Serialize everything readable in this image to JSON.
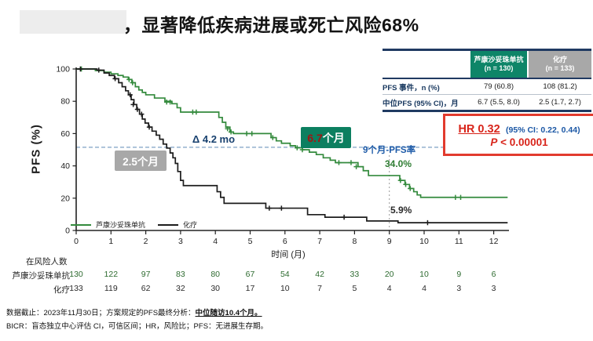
{
  "title": {
    "text": "，显著降低疾病进展或死亡风险68%"
  },
  "summary_table": {
    "columns": [
      {
        "label": "芦康沙妥珠单抗",
        "sub": "(n = 130)",
        "color": "#0e8568"
      },
      {
        "label": "化疗",
        "sub": "(n = 133)",
        "color": "#a8a8a8"
      }
    ],
    "rows": [
      {
        "label": "PFS 事件，n (%)",
        "values": [
          "79 (60.8)",
          "108 (81.2)"
        ]
      },
      {
        "label": "中位PFS (95% CI)，月",
        "values": [
          "6.7 (5.5, 8.0)",
          "2.5 (1.7, 2.7)"
        ]
      }
    ]
  },
  "hr_box": {
    "hr": "HR 0.32",
    "ci": "(95% CI: 0.22, 0.44)",
    "p_symbol": "P",
    "p_rest": " < 0.00001"
  },
  "annotations": {
    "delta": "Δ 4.2 mo",
    "green_median_value": "6.7",
    "green_median_unit": "个月",
    "gray_median": "2.5个月",
    "rate_label": "9个月-PFS率",
    "green_rate": "34.0%",
    "black_rate": "5.9%"
  },
  "footer": {
    "line1_prefix": "数据截止：2023年11月30日；方案规定的PFS最终分析：",
    "line1_underline": "中位随访10.4个月。",
    "line2": "BICR：盲态独立中心评估 CI，可信区间；HR，风险比；PFS：无进展生存期。"
  },
  "chart_data": {
    "type": "line",
    "subtype": "kaplan-meier",
    "title": "显著降低疾病进展或死亡风险68%",
    "xlabel": "时间 (月)",
    "ylabel": "PFS (%)",
    "xlim": [
      0,
      12.4
    ],
    "ylim": [
      0,
      100
    ],
    "x_ticks": [
      0,
      1,
      2,
      3,
      4,
      5,
      6,
      7,
      8,
      9,
      10,
      11,
      12
    ],
    "y_ticks": [
      0,
      20,
      40,
      60,
      80,
      100
    ],
    "grid": false,
    "legend_position": "inside bottom-left",
    "reference_lines": {
      "horizontal_pct": 51.5,
      "vertical_month": 9
    },
    "hr": "0.32",
    "hr_ci": "0.22, 0.44",
    "p": "< 0.00001",
    "delta_months": "4.2",
    "series": [
      {
        "name": "芦康沙妥珠单抗",
        "color": "#338a3c",
        "n": 130,
        "events": "79 (60.8)",
        "median_pfs": "6.7 (5.5, 8.0)",
        "rate_9mo_pct": 34.0,
        "points": [
          [
            0,
            100
          ],
          [
            0.55,
            99
          ],
          [
            0.8,
            98
          ],
          [
            1.0,
            97
          ],
          [
            1.2,
            96
          ],
          [
            1.35,
            95
          ],
          [
            1.5,
            93.5
          ],
          [
            1.6,
            91.5
          ],
          [
            1.7,
            89
          ],
          [
            1.8,
            87
          ],
          [
            1.9,
            85.5
          ],
          [
            2.0,
            84
          ],
          [
            2.25,
            82
          ],
          [
            2.55,
            80
          ],
          [
            2.75,
            78.5
          ],
          [
            2.9,
            76
          ],
          [
            3.0,
            73.3
          ],
          [
            3.95,
            73.3
          ],
          [
            4.1,
            70
          ],
          [
            4.2,
            67
          ],
          [
            4.3,
            64
          ],
          [
            4.42,
            61
          ],
          [
            4.52,
            60
          ],
          [
            5.45,
            60
          ],
          [
            5.6,
            57.5
          ],
          [
            5.75,
            55.5
          ],
          [
            5.9,
            54
          ],
          [
            6.15,
            52.5
          ],
          [
            6.3,
            51.2
          ],
          [
            6.5,
            50
          ],
          [
            6.7,
            48.5
          ],
          [
            6.9,
            47
          ],
          [
            7.1,
            45
          ],
          [
            7.3,
            43.5
          ],
          [
            7.45,
            42
          ],
          [
            7.95,
            42
          ],
          [
            8.1,
            39.5
          ],
          [
            8.25,
            37
          ],
          [
            8.4,
            34
          ],
          [
            9.2,
            34
          ],
          [
            9.3,
            31
          ],
          [
            9.45,
            28.5
          ],
          [
            9.58,
            26
          ],
          [
            9.7,
            24
          ],
          [
            9.8,
            22
          ],
          [
            9.9,
            20.5
          ],
          [
            12.4,
            20.5
          ]
        ],
        "censors": [
          [
            0.15,
            100
          ],
          [
            1.52,
            93.5
          ],
          [
            1.62,
            91.5
          ],
          [
            2.6,
            79.5
          ],
          [
            2.7,
            79.5
          ],
          [
            3.35,
            73.3
          ],
          [
            3.45,
            73.3
          ],
          [
            4.35,
            63
          ],
          [
            4.45,
            61
          ],
          [
            4.9,
            60
          ],
          [
            5.05,
            60
          ],
          [
            5.65,
            57.5
          ],
          [
            6.35,
            51.2
          ],
          [
            6.5,
            50
          ],
          [
            7.55,
            42
          ],
          [
            7.9,
            42
          ],
          [
            8.05,
            39.5
          ],
          [
            9.32,
            31
          ],
          [
            9.47,
            28.5
          ],
          [
            9.6,
            26
          ],
          [
            10.9,
            20.5
          ],
          [
            11.05,
            20.5
          ]
        ]
      },
      {
        "name": "化疗",
        "color": "#1c1c1c",
        "n": 133,
        "events": "108 (81.2)",
        "median_pfs": "2.5 (1.7, 2.7)",
        "rate_9mo_pct": 5.9,
        "points": [
          [
            0,
            100
          ],
          [
            0.6,
            99.3
          ],
          [
            0.8,
            97.5
          ],
          [
            0.95,
            96
          ],
          [
            1.1,
            94
          ],
          [
            1.22,
            91.5
          ],
          [
            1.32,
            89
          ],
          [
            1.42,
            86.5
          ],
          [
            1.5,
            84
          ],
          [
            1.58,
            81
          ],
          [
            1.66,
            78
          ],
          [
            1.74,
            75
          ],
          [
            1.82,
            72
          ],
          [
            1.9,
            69
          ],
          [
            1.98,
            66.5
          ],
          [
            2.08,
            64
          ],
          [
            2.18,
            61.5
          ],
          [
            2.3,
            59
          ],
          [
            2.4,
            56.5
          ],
          [
            2.5,
            53.5
          ],
          [
            2.6,
            51
          ],
          [
            2.7,
            48
          ],
          [
            2.78,
            45
          ],
          [
            2.85,
            41.5
          ],
          [
            2.92,
            36.5
          ],
          [
            3.0,
            31
          ],
          [
            3.08,
            27.8
          ],
          [
            3.95,
            27.8
          ],
          [
            4.05,
            24
          ],
          [
            4.15,
            20.5
          ],
          [
            4.25,
            16.8
          ],
          [
            5.35,
            16.8
          ],
          [
            5.45,
            13.8
          ],
          [
            6.55,
            13.8
          ],
          [
            6.65,
            9.8
          ],
          [
            7.05,
            9.8
          ],
          [
            7.15,
            8.2
          ],
          [
            8.25,
            8.2
          ],
          [
            8.35,
            5.9
          ],
          [
            9.15,
            5.9
          ],
          [
            9.25,
            4.8
          ],
          [
            12.4,
            4.8
          ]
        ],
        "censors": [
          [
            0.12,
            100
          ],
          [
            0.65,
            99.3
          ],
          [
            1.12,
            94
          ],
          [
            1.55,
            84
          ],
          [
            1.64,
            78
          ],
          [
            1.76,
            75
          ],
          [
            1.88,
            72
          ],
          [
            2.1,
            64
          ],
          [
            5.55,
            13.8
          ],
          [
            5.9,
            13.8
          ],
          [
            7.7,
            8.2
          ],
          [
            10.1,
            4.8
          ]
        ]
      }
    ],
    "number_at_risk": {
      "title": "在风险人数",
      "groups": [
        {
          "label": "芦康沙妥珠单抗",
          "color": "#2e6b30",
          "counts": [
            130,
            122,
            97,
            83,
            80,
            67,
            54,
            42,
            33,
            20,
            10,
            9,
            6
          ]
        },
        {
          "label": "化疗",
          "color": "#2b2b2b",
          "counts": [
            133,
            119,
            62,
            32,
            30,
            17,
            10,
            7,
            5,
            4,
            4,
            3,
            3
          ]
        }
      ]
    }
  }
}
